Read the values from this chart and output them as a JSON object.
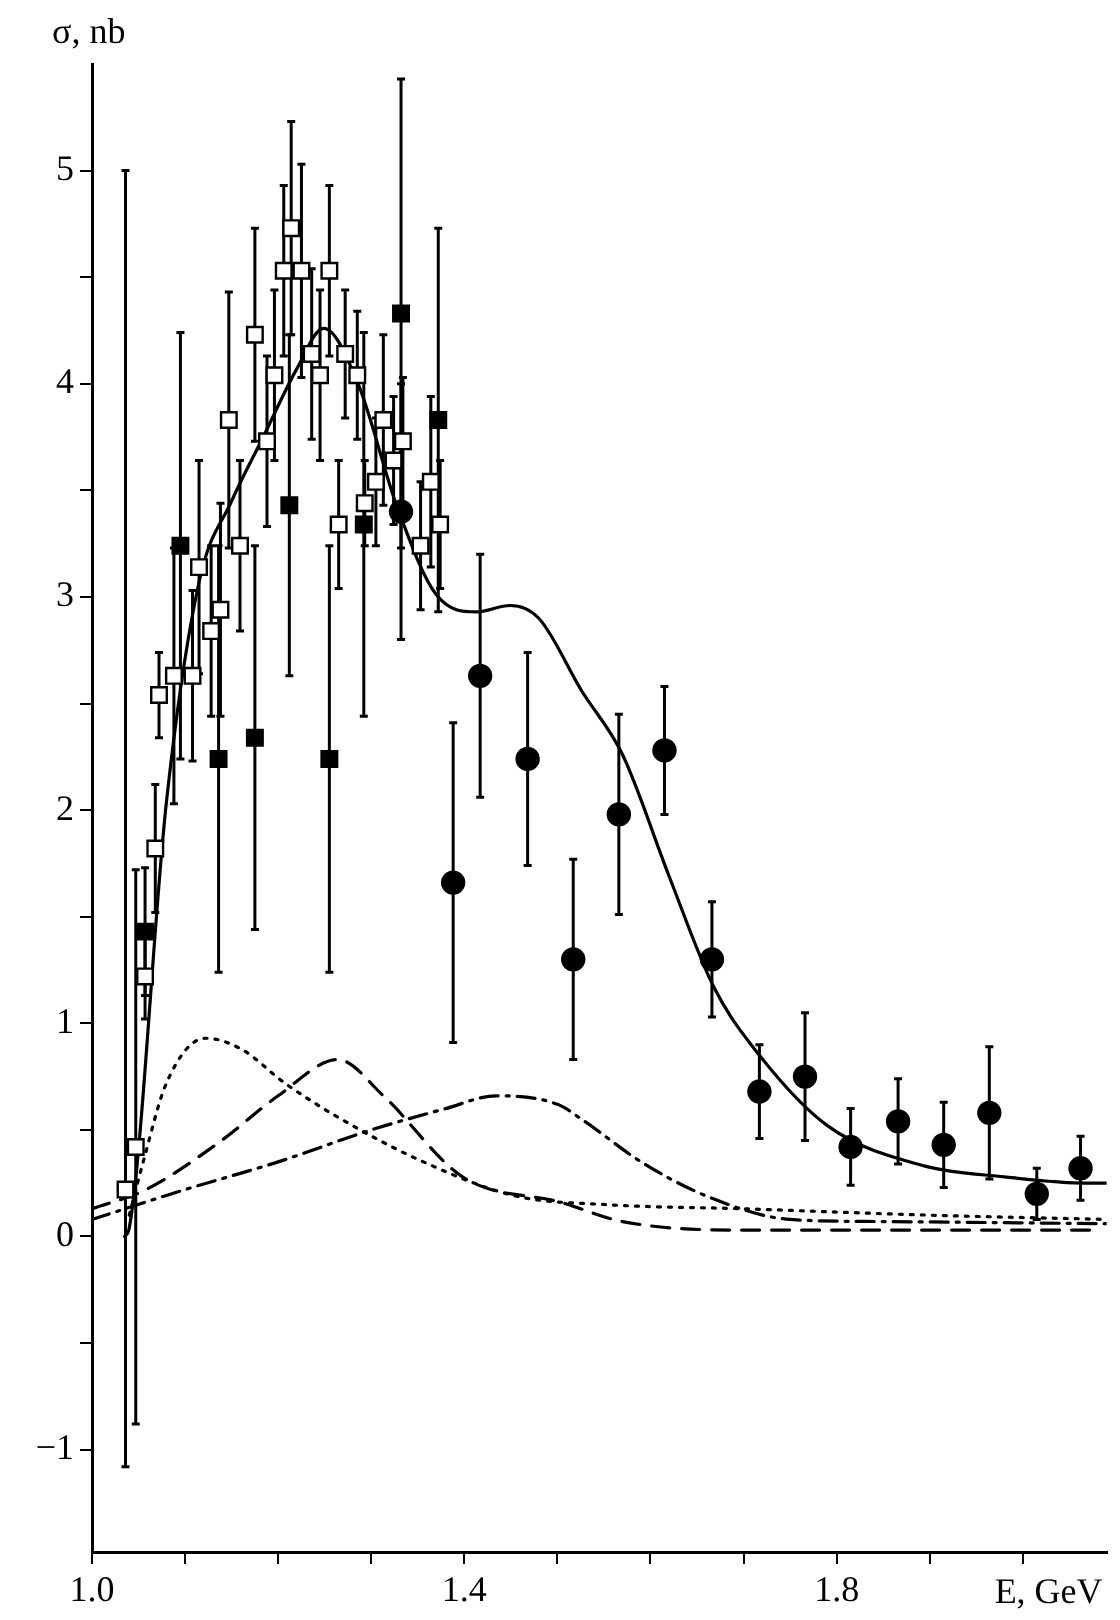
{
  "chart_data": {
    "type": "scatter",
    "xlabel": "E, GeV",
    "ylabel": "σ, nb",
    "xlim": [
      1.0,
      2.09
    ],
    "ylim": [
      -1.48,
      5.5
    ],
    "xticks": [
      {
        "value": 1.0,
        "label": "1.0"
      },
      {
        "value": 1.1,
        "label": null
      },
      {
        "value": 1.2,
        "label": null
      },
      {
        "value": 1.3,
        "label": null
      },
      {
        "value": 1.4,
        "label": "1.4"
      },
      {
        "value": 1.5,
        "label": null
      },
      {
        "value": 1.6,
        "label": null
      },
      {
        "value": 1.7,
        "label": null
      },
      {
        "value": 1.8,
        "label": "1.8"
      },
      {
        "value": 1.9,
        "label": null
      },
      {
        "value": 2.0,
        "label": null
      }
    ],
    "yticks": [
      {
        "value": -1,
        "label": "−1"
      },
      {
        "value": -0.5,
        "label": null
      },
      0,
      {
        "value": 0.5,
        "label": null
      },
      1,
      {
        "value": 1.5,
        "label": null
      },
      2,
      {
        "value": 2.5,
        "label": null
      },
      3,
      {
        "value": 3.5,
        "label": null
      },
      4,
      {
        "value": 4.5,
        "label": null
      },
      5
    ],
    "grid": false,
    "legend": false,
    "series": [
      {
        "type": "scatter",
        "marker": "square",
        "color": "#ffffff",
        "x": [
          1.036,
          1.047,
          1.057,
          1.068,
          1.072,
          1.088,
          1.108,
          1.115,
          1.128,
          1.138,
          1.147,
          1.159,
          1.175,
          1.188,
          1.196,
          1.206,
          1.214,
          1.225,
          1.236,
          1.245,
          1.255,
          1.265,
          1.272,
          1.285,
          1.293,
          1.305,
          1.313,
          1.324,
          1.334,
          1.353,
          1.364,
          1.374
        ],
        "values": [
          0.22,
          0.42,
          1.22,
          1.82,
          2.54,
          2.63,
          2.63,
          3.14,
          2.84,
          2.94,
          3.83,
          3.24,
          4.23,
          3.73,
          4.04,
          4.53,
          4.73,
          4.53,
          4.14,
          4.04,
          4.53,
          3.34,
          4.14,
          4.04,
          3.44,
          3.54,
          3.83,
          3.64,
          3.73,
          3.24,
          3.54,
          3.34
        ],
        "errors": [
          [
            -1.08,
            5.0
          ],
          1.3,
          0.2,
          0.3,
          0.2,
          0.6,
          0.4,
          0.5,
          0.4,
          0.5,
          0.6,
          0.4,
          0.5,
          0.4,
          0.4,
          0.4,
          0.5,
          0.5,
          0.4,
          0.4,
          0.4,
          0.3,
          0.3,
          0.3,
          0.2,
          0.3,
          0.4,
          0.3,
          0.3,
          0.3,
          0.4,
          0.3
        ]
      },
      {
        "type": "scatter",
        "marker": "square",
        "color": "#000000",
        "x": [
          1.057,
          1.095,
          1.136,
          1.175,
          1.212,
          1.255,
          1.292,
          1.332,
          1.372
        ],
        "values": [
          1.43,
          3.24,
          2.24,
          2.34,
          3.43,
          2.24,
          3.34,
          4.33,
          3.83
        ],
        "errors": [
          0.3,
          1.0,
          1.0,
          0.9,
          0.8,
          1.0,
          0.9,
          1.1,
          0.9
        ]
      },
      {
        "type": "scatter",
        "marker": "circle",
        "color": "#000000",
        "x": [
          1.332,
          1.388,
          1.417,
          1.468,
          1.517,
          1.566,
          1.615,
          1.666,
          1.717,
          1.766,
          1.815,
          1.866,
          1.915,
          1.964,
          2.015,
          2.062
        ],
        "values": [
          3.4,
          1.66,
          2.63,
          2.24,
          1.3,
          1.98,
          2.28,
          1.3,
          0.68,
          0.75,
          0.42,
          0.54,
          0.43,
          0.58,
          0.2,
          0.32
        ],
        "errors": [
          0.6,
          0.75,
          0.57,
          0.5,
          0.47,
          0.47,
          0.3,
          0.27,
          0.22,
          0.3,
          0.18,
          0.2,
          0.2,
          0.31,
          0.12,
          0.15
        ]
      },
      {
        "type": "line",
        "marker": "none",
        "line_style": "solid",
        "color": "#000000",
        "x": [
          1.035,
          1.04,
          1.08,
          1.115,
          1.15,
          1.185,
          1.22,
          1.249,
          1.285,
          1.328,
          1.37,
          1.413,
          1.449,
          1.48,
          1.526,
          1.57,
          1.62,
          1.668,
          1.717,
          1.79,
          1.895,
          1.98,
          2.07,
          2.09
        ],
        "values": [
          0.0,
          0.04,
          2.04,
          3.07,
          3.45,
          3.76,
          4.07,
          4.26,
          4.01,
          3.42,
          3.01,
          2.93,
          2.96,
          2.9,
          2.56,
          2.26,
          1.69,
          1.17,
          0.85,
          0.52,
          0.33,
          0.28,
          0.25,
          0.25
        ]
      },
      {
        "type": "line",
        "marker": "none",
        "line_style": "dotted",
        "color": "#000000",
        "x": [
          1.04,
          1.055,
          1.08,
          1.122,
          1.16,
          1.207,
          1.264,
          1.356,
          1.455,
          1.55,
          1.7,
          1.9,
          2.09
        ],
        "values": [
          0.1,
          0.35,
          0.72,
          0.93,
          0.88,
          0.72,
          0.56,
          0.35,
          0.19,
          0.15,
          0.13,
          0.1,
          0.08
        ]
      },
      {
        "type": "line",
        "marker": "none",
        "line_style": "dashed",
        "color": "#000000",
        "x": [
          1.0,
          1.058,
          1.136,
          1.2,
          1.264,
          1.313,
          1.398,
          1.504,
          1.57,
          1.7,
          2.08
        ],
        "values": [
          0.13,
          0.22,
          0.44,
          0.66,
          0.83,
          0.66,
          0.28,
          0.16,
          0.07,
          0.03,
          0.03
        ]
      },
      {
        "type": "line",
        "marker": "none",
        "line_style": "dashdot",
        "color": "#000000",
        "x": [
          1.0,
          1.1,
          1.2,
          1.3,
          1.38,
          1.434,
          1.5,
          1.526,
          1.59,
          1.66,
          1.75,
          1.85,
          2.09
        ],
        "values": [
          0.08,
          0.22,
          0.35,
          0.5,
          0.6,
          0.66,
          0.62,
          0.55,
          0.35,
          0.19,
          0.08,
          0.07,
          0.06
        ]
      }
    ]
  }
}
